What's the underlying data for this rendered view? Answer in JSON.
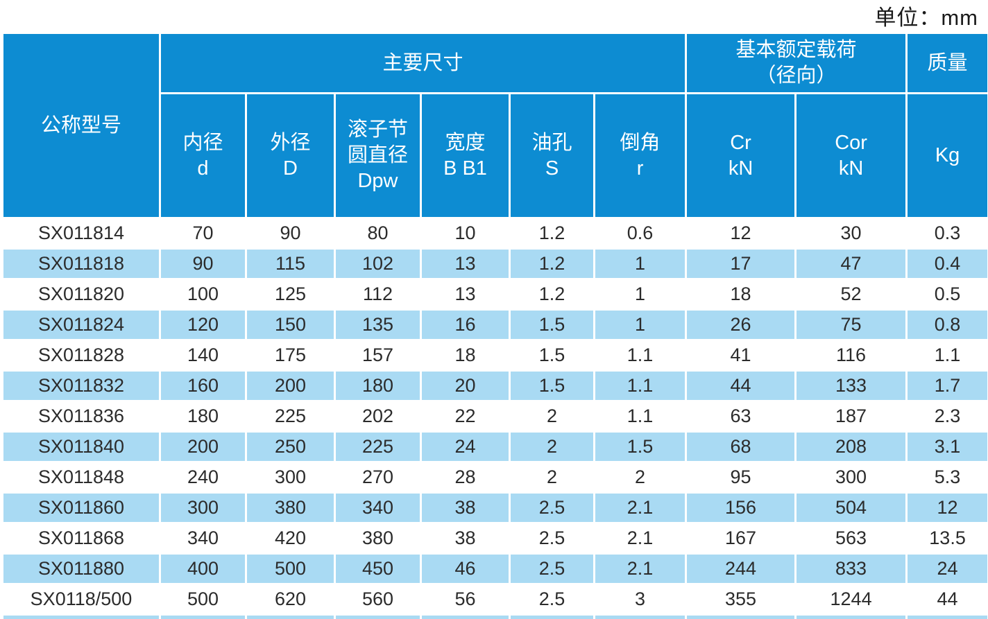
{
  "page": {
    "unit_label": "单位：mm"
  },
  "colors": {
    "header_blue": "#0d8cd2",
    "row_alt_blue": "#a9daf3",
    "row_white": "#ffffff",
    "header_text": "#ffffff",
    "body_text": "#2b2b2b"
  },
  "table": {
    "header": {
      "model": "公称型号",
      "main_dims": "主要尺寸",
      "load_group": [
        "基本额定载荷",
        "（径向）"
      ],
      "mass": "质量",
      "subheaders": [
        [
          "内径",
          "d"
        ],
        [
          "外径",
          "D"
        ],
        [
          "滚子节",
          "圆直径",
          "Dpw"
        ],
        [
          "宽度",
          "B B1"
        ],
        [
          "油孔",
          "S"
        ],
        [
          "倒角",
          "r"
        ],
        [
          "Cr",
          "kN"
        ],
        [
          "Cor",
          "kN"
        ],
        [
          "Kg"
        ]
      ]
    },
    "rows": [
      [
        "SX011814",
        "70",
        "90",
        "80",
        "10",
        "1.2",
        "0.6",
        "12",
        "30",
        "0.3"
      ],
      [
        "SX011818",
        "90",
        "115",
        "102",
        "13",
        "1.2",
        "1",
        "17",
        "47",
        "0.4"
      ],
      [
        "SX011820",
        "100",
        "125",
        "112",
        "13",
        "1.2",
        "1",
        "18",
        "52",
        "0.5"
      ],
      [
        "SX011824",
        "120",
        "150",
        "135",
        "16",
        "1.5",
        "1",
        "26",
        "75",
        "0.8"
      ],
      [
        "SX011828",
        "140",
        "175",
        "157",
        "18",
        "1.5",
        "1.1",
        "41",
        "116",
        "1.1"
      ],
      [
        "SX011832",
        "160",
        "200",
        "180",
        "20",
        "1.5",
        "1.1",
        "44",
        "133",
        "1.7"
      ],
      [
        "SX011836",
        "180",
        "225",
        "202",
        "22",
        "2",
        "1.1",
        "63",
        "187",
        "2.3"
      ],
      [
        "SX011840",
        "200",
        "250",
        "225",
        "24",
        "2",
        "1.5",
        "68",
        "208",
        "3.1"
      ],
      [
        "SX011848",
        "240",
        "300",
        "270",
        "28",
        "2",
        "2",
        "95",
        "300",
        "5.3"
      ],
      [
        "SX011860",
        "300",
        "380",
        "340",
        "38",
        "2.5",
        "2.1",
        "156",
        "504",
        "12"
      ],
      [
        "SX011868",
        "340",
        "420",
        "380",
        "38",
        "2.5",
        "2.1",
        "167",
        "563",
        "13.5"
      ],
      [
        "SX011880",
        "400",
        "500",
        "450",
        "46",
        "2.5",
        "2.1",
        "244",
        "833",
        "24"
      ],
      [
        "SX0118/500",
        "500",
        "620",
        "560",
        "56",
        "2.5",
        "3",
        "355",
        "1244",
        "44"
      ],
      [
        "",
        "",
        "",
        "",
        "",
        "",
        "",
        "",
        "",
        ""
      ]
    ]
  }
}
